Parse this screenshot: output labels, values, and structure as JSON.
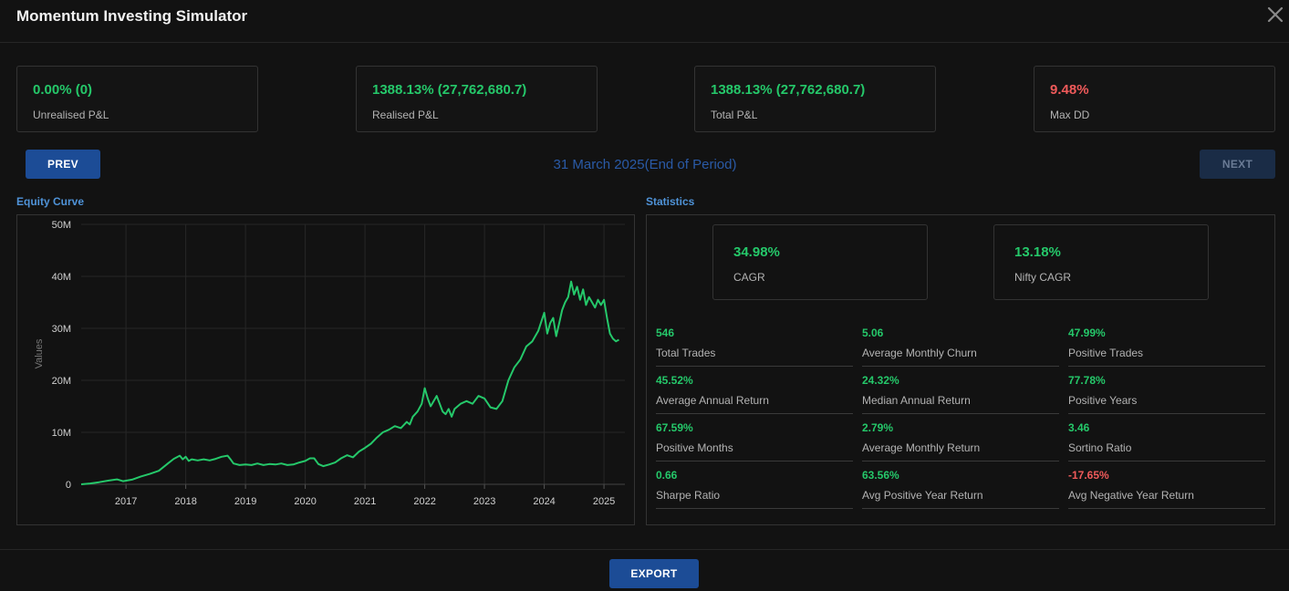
{
  "window": {
    "title": "Momentum Investing Simulator"
  },
  "summary_cards": [
    {
      "value": "0.00% (0)",
      "label": "Unrealised P&L",
      "color": "#25c86a"
    },
    {
      "value": "1388.13% (27,762,680.7)",
      "label": "Realised P&L",
      "color": "#25c86a"
    },
    {
      "value": "1388.13% (27,762,680.7)",
      "label": "Total P&L",
      "color": "#25c86a"
    },
    {
      "value": "9.48%",
      "label": "Max DD",
      "color": "#ef5a5a"
    }
  ],
  "navigation": {
    "prev_label": "PREV",
    "next_label": "NEXT",
    "period_label": "31 March 2025(End of Period)"
  },
  "equity_section": {
    "title": "Equity Curve"
  },
  "statistics_section": {
    "title": "Statistics",
    "cagr": {
      "value": "34.98%",
      "label": "CAGR"
    },
    "nifty_cagr": {
      "value": "13.18%",
      "label": "Nifty CAGR"
    },
    "stats": [
      {
        "value": "546",
        "label": "Total Trades",
        "color": "#25c86a"
      },
      {
        "value": "5.06",
        "label": "Average Monthly Churn",
        "color": "#25c86a"
      },
      {
        "value": "47.99%",
        "label": "Positive Trades",
        "color": "#25c86a"
      },
      {
        "value": "45.52%",
        "label": "Average Annual Return",
        "color": "#25c86a"
      },
      {
        "value": "24.32%",
        "label": "Median Annual Return",
        "color": "#25c86a"
      },
      {
        "value": "77.78%",
        "label": "Positive Years",
        "color": "#25c86a"
      },
      {
        "value": "67.59%",
        "label": "Positive Months",
        "color": "#25c86a"
      },
      {
        "value": "2.79%",
        "label": "Average Monthly Return",
        "color": "#25c86a"
      },
      {
        "value": "3.46",
        "label": "Sortino Ratio",
        "color": "#25c86a"
      },
      {
        "value": "0.66",
        "label": "Sharpe Ratio",
        "color": "#25c86a"
      },
      {
        "value": "63.56%",
        "label": "Avg Positive Year Return",
        "color": "#25c86a"
      },
      {
        "value": "-17.65%",
        "label": "Avg Negative Year Return",
        "color": "#ef5a5a"
      }
    ]
  },
  "footer": {
    "export_label": "EXPORT"
  },
  "chart_data": {
    "type": "line",
    "title": "",
    "xlabel": "",
    "ylabel": "Values",
    "grid": true,
    "legend": "none",
    "line_color": "#25c86a",
    "xlim": [
      2016.25,
      2025.35
    ],
    "ylim": [
      0,
      50000000
    ],
    "x_ticks": [
      {
        "value": 2017,
        "label": "2017"
      },
      {
        "value": 2018,
        "label": "2018"
      },
      {
        "value": 2019,
        "label": "2019"
      },
      {
        "value": 2020,
        "label": "2020"
      },
      {
        "value": 2021,
        "label": "2021"
      },
      {
        "value": 2022,
        "label": "2022"
      },
      {
        "value": 2023,
        "label": "2023"
      },
      {
        "value": 2024,
        "label": "2024"
      },
      {
        "value": 2025,
        "label": "2025"
      }
    ],
    "y_ticks": [
      {
        "value": 0,
        "label": "0"
      },
      {
        "value": 10000000,
        "label": "10M"
      },
      {
        "value": 20000000,
        "label": "20M"
      },
      {
        "value": 30000000,
        "label": "30M"
      },
      {
        "value": 40000000,
        "label": "40M"
      },
      {
        "value": 50000000,
        "label": "50M"
      }
    ],
    "series": [
      {
        "x": [
          2016.25,
          2016.4,
          2016.55,
          2016.7,
          2016.85,
          2016.95,
          2017.1,
          2017.25,
          2017.4,
          2017.55,
          2017.7,
          2017.8,
          2017.9,
          2017.95,
          2018.0,
          2018.05,
          2018.1,
          2018.2,
          2018.3,
          2018.4,
          2018.5,
          2018.6,
          2018.7,
          2018.75,
          2018.8,
          2018.9,
          2019.0,
          2019.1,
          2019.2,
          2019.3,
          2019.4,
          2019.5,
          2019.6,
          2019.7,
          2019.8,
          2019.9,
          2020.0,
          2020.08,
          2020.15,
          2020.22,
          2020.3,
          2020.4,
          2020.5,
          2020.6,
          2020.7,
          2020.8,
          2020.9,
          2021.0,
          2021.1,
          2021.2,
          2021.3,
          2021.4,
          2021.5,
          2021.6,
          2021.7,
          2021.75,
          2021.8,
          2021.88,
          2021.95,
          2022.0,
          2022.05,
          2022.1,
          2022.15,
          2022.2,
          2022.25,
          2022.3,
          2022.35,
          2022.4,
          2022.45,
          2022.5,
          2022.6,
          2022.7,
          2022.8,
          2022.9,
          2023.0,
          2023.1,
          2023.2,
          2023.3,
          2023.4,
          2023.5,
          2023.6,
          2023.7,
          2023.8,
          2023.9,
          2024.0,
          2024.05,
          2024.1,
          2024.15,
          2024.2,
          2024.25,
          2024.3,
          2024.35,
          2024.4,
          2024.45,
          2024.5,
          2024.55,
          2024.6,
          2024.65,
          2024.7,
          2024.75,
          2024.8,
          2024.85,
          2024.9,
          2024.95,
          2025.0,
          2025.05,
          2025.1,
          2025.15,
          2025.2,
          2025.25
        ],
        "y": [
          0,
          150000,
          400000,
          700000,
          950000,
          600000,
          900000,
          1500000,
          2000000,
          2600000,
          4000000,
          4900000,
          5500000,
          4800000,
          5300000,
          4500000,
          4800000,
          4600000,
          4800000,
          4600000,
          4900000,
          5300000,
          5500000,
          4800000,
          4000000,
          3700000,
          3800000,
          3700000,
          4000000,
          3700000,
          3900000,
          3800000,
          4000000,
          3700000,
          3800000,
          4200000,
          4500000,
          5000000,
          5000000,
          3900000,
          3500000,
          3800000,
          4200000,
          5000000,
          5600000,
          5200000,
          6300000,
          7000000,
          7800000,
          9000000,
          10000000,
          10500000,
          11200000,
          10800000,
          12000000,
          11500000,
          13000000,
          14000000,
          15500000,
          18500000,
          16500000,
          15000000,
          16000000,
          17000000,
          15500000,
          14000000,
          13500000,
          14500000,
          13000000,
          14500000,
          15500000,
          16000000,
          15500000,
          17000000,
          16500000,
          14800000,
          14500000,
          16000000,
          20000000,
          22500000,
          24000000,
          26500000,
          27500000,
          29500000,
          33000000,
          29000000,
          31000000,
          32000000,
          28500000,
          31000000,
          33500000,
          35000000,
          36000000,
          39000000,
          36500000,
          38000000,
          35500000,
          37500000,
          34500000,
          36000000,
          35000000,
          34000000,
          35500000,
          34500000,
          35500000,
          32000000,
          29000000,
          28000000,
          27500000,
          27800000
        ]
      }
    ]
  }
}
